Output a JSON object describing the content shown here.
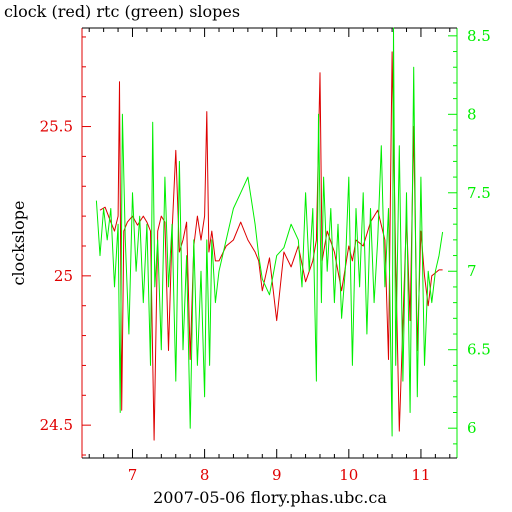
{
  "chart_data": {
    "type": "line",
    "title": "clock (red) rtc (green) slopes",
    "xlabel": "2007-05-06  flory.phas.ubc.ca",
    "ylabel": "clockslope",
    "xlim": [
      6.3,
      11.5
    ],
    "ylim_left": [
      24.39,
      25.83
    ],
    "ylim_right": [
      5.81,
      8.55
    ],
    "x_ticks": [
      7,
      8,
      9,
      10,
      11
    ],
    "y_ticks_left": [
      24.5,
      25,
      25.5
    ],
    "y_ticks_right": [
      6,
      6.5,
      7,
      7.5,
      8,
      8.5
    ],
    "x_tick_labels": [
      "7",
      "8",
      "9",
      "10",
      "11"
    ],
    "y_tick_labels_left": [
      "24.5",
      "25",
      "25.5"
    ],
    "y_tick_labels_right": [
      "6",
      "6.5",
      "7",
      "7.5",
      "8",
      "8.5"
    ],
    "colors": {
      "axis": "#000000",
      "left_axis": "#e00000",
      "right_axis": "#00ee00",
      "clock": "#dd0000",
      "rtc": "#00ee00"
    },
    "series": [
      {
        "axis": "left",
        "x": [
          6.55,
          6.62,
          6.7,
          6.75,
          6.8,
          6.82,
          6.85,
          6.88,
          6.93,
          7.0,
          7.07,
          7.15,
          7.2,
          7.25,
          7.3,
          7.35,
          7.4,
          7.45,
          7.5,
          7.55,
          7.6,
          7.65,
          7.7,
          7.75,
          7.8,
          7.85,
          7.9,
          7.95,
          8.0,
          8.03,
          8.06,
          8.1,
          8.15,
          8.2,
          8.3,
          8.4,
          8.5,
          8.6,
          8.7,
          8.75,
          8.8,
          8.9,
          9.0,
          9.1,
          9.2,
          9.3,
          9.4,
          9.5,
          9.55,
          9.6,
          9.63,
          9.7,
          9.8,
          9.9,
          10.0,
          10.05,
          10.1,
          10.2,
          10.3,
          10.4,
          10.5,
          10.55,
          10.6,
          10.65,
          10.7,
          10.8,
          10.85,
          10.9,
          10.95,
          11.0,
          11.05,
          11.1,
          11.15,
          11.2,
          11.25,
          11.3
        ],
        "y": [
          25.22,
          25.23,
          25.18,
          25.15,
          25.2,
          25.65,
          24.55,
          25.15,
          25.18,
          25.2,
          25.17,
          25.2,
          25.18,
          25.15,
          24.45,
          25.15,
          25.2,
          25.18,
          24.75,
          25.15,
          25.42,
          25.08,
          25.12,
          25.18,
          24.72,
          25.1,
          25.2,
          25.12,
          25.2,
          25.55,
          25.08,
          25.15,
          25.05,
          25.05,
          25.1,
          25.12,
          25.18,
          25.12,
          25.08,
          25.05,
          24.95,
          25.06,
          24.85,
          25.08,
          25.03,
          25.1,
          24.98,
          25.05,
          25.12,
          25.68,
          25.05,
          25.15,
          25.08,
          24.95,
          25.1,
          25.05,
          25.12,
          25.1,
          25.18,
          25.22,
          25.12,
          24.72,
          25.75,
          25.05,
          24.48,
          25.2,
          24.85,
          25.5,
          24.75,
          25.15,
          25.0,
          24.9,
          25.0,
          25.01,
          25.02,
          25.02
        ]
      },
      {
        "axis": "right",
        "x": [
          6.5,
          6.55,
          6.6,
          6.65,
          6.7,
          6.75,
          6.8,
          6.83,
          6.86,
          6.9,
          6.95,
          7.0,
          7.05,
          7.1,
          7.15,
          7.2,
          7.25,
          7.28,
          7.31,
          7.35,
          7.4,
          7.45,
          7.5,
          7.55,
          7.6,
          7.65,
          7.7,
          7.75,
          7.8,
          7.85,
          7.9,
          7.95,
          8.0,
          8.03,
          8.07,
          8.1,
          8.15,
          8.2,
          8.3,
          8.4,
          8.5,
          8.6,
          8.65,
          8.7,
          8.75,
          8.8,
          8.85,
          8.9,
          9.0,
          9.1,
          9.2,
          9.3,
          9.35,
          9.4,
          9.45,
          9.5,
          9.55,
          9.58,
          9.62,
          9.65,
          9.7,
          9.75,
          9.8,
          9.85,
          9.9,
          9.95,
          10.0,
          10.05,
          10.1,
          10.15,
          10.2,
          10.25,
          10.3,
          10.35,
          10.4,
          10.45,
          10.5,
          10.55,
          10.6,
          10.62,
          10.65,
          10.7,
          10.75,
          10.8,
          10.85,
          10.9,
          10.95,
          11.0,
          11.05,
          11.1,
          11.15,
          11.2,
          11.25,
          11.3
        ],
        "y": [
          7.45,
          7.1,
          7.4,
          7.2,
          7.4,
          6.9,
          7.3,
          6.1,
          8.0,
          7.2,
          6.6,
          7.5,
          7.0,
          7.35,
          6.8,
          7.3,
          6.4,
          7.95,
          6.9,
          7.2,
          6.5,
          7.6,
          6.9,
          7.3,
          6.3,
          7.7,
          6.5,
          7.1,
          6.0,
          7.2,
          6.4,
          7.0,
          6.2,
          7.2,
          6.4,
          7.2,
          6.8,
          7.0,
          7.2,
          7.4,
          7.5,
          7.6,
          7.45,
          7.3,
          7.1,
          6.95,
          6.9,
          6.85,
          7.1,
          7.15,
          7.3,
          7.2,
          6.9,
          7.5,
          7.0,
          7.4,
          6.3,
          8.0,
          6.8,
          7.6,
          7.0,
          7.4,
          6.8,
          7.3,
          6.7,
          7.0,
          7.6,
          6.4,
          7.4,
          6.9,
          7.5,
          6.6,
          7.4,
          6.8,
          7.2,
          7.8,
          6.9,
          7.4,
          5.95,
          8.55,
          6.4,
          7.8,
          6.3,
          7.5,
          6.1,
          8.3,
          6.2,
          7.6,
          6.4,
          7.0,
          6.8,
          7.0,
          7.1,
          7.25
        ]
      }
    ]
  }
}
